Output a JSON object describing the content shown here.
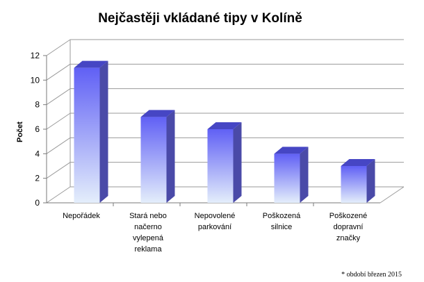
{
  "chart_data": {
    "type": "bar",
    "title": "Nejčastěji vkládané tipy v Kolíně",
    "xlabel": "",
    "ylabel": "Počet",
    "ylim": [
      0,
      12
    ],
    "yticks": [
      "0",
      "2",
      "4",
      "6",
      "8",
      "10",
      "12"
    ],
    "grid": true,
    "categories": [
      [
        "Nepořádek"
      ],
      [
        "Stará nebo",
        "načerno",
        "vylepená",
        "reklama"
      ],
      [
        "Nepovolené",
        "parkování"
      ],
      [
        "Poškozená",
        "silnice"
      ],
      [
        "Poškozené",
        "dopravní",
        "značky"
      ]
    ],
    "values": [
      11,
      7,
      6,
      4,
      3
    ],
    "bar_colors": {
      "top": "#6060f5",
      "bottom": "#e4eefb",
      "side": "#4a4aa8",
      "cap": "#4646c4"
    }
  },
  "footnote": "* období březen 2015"
}
